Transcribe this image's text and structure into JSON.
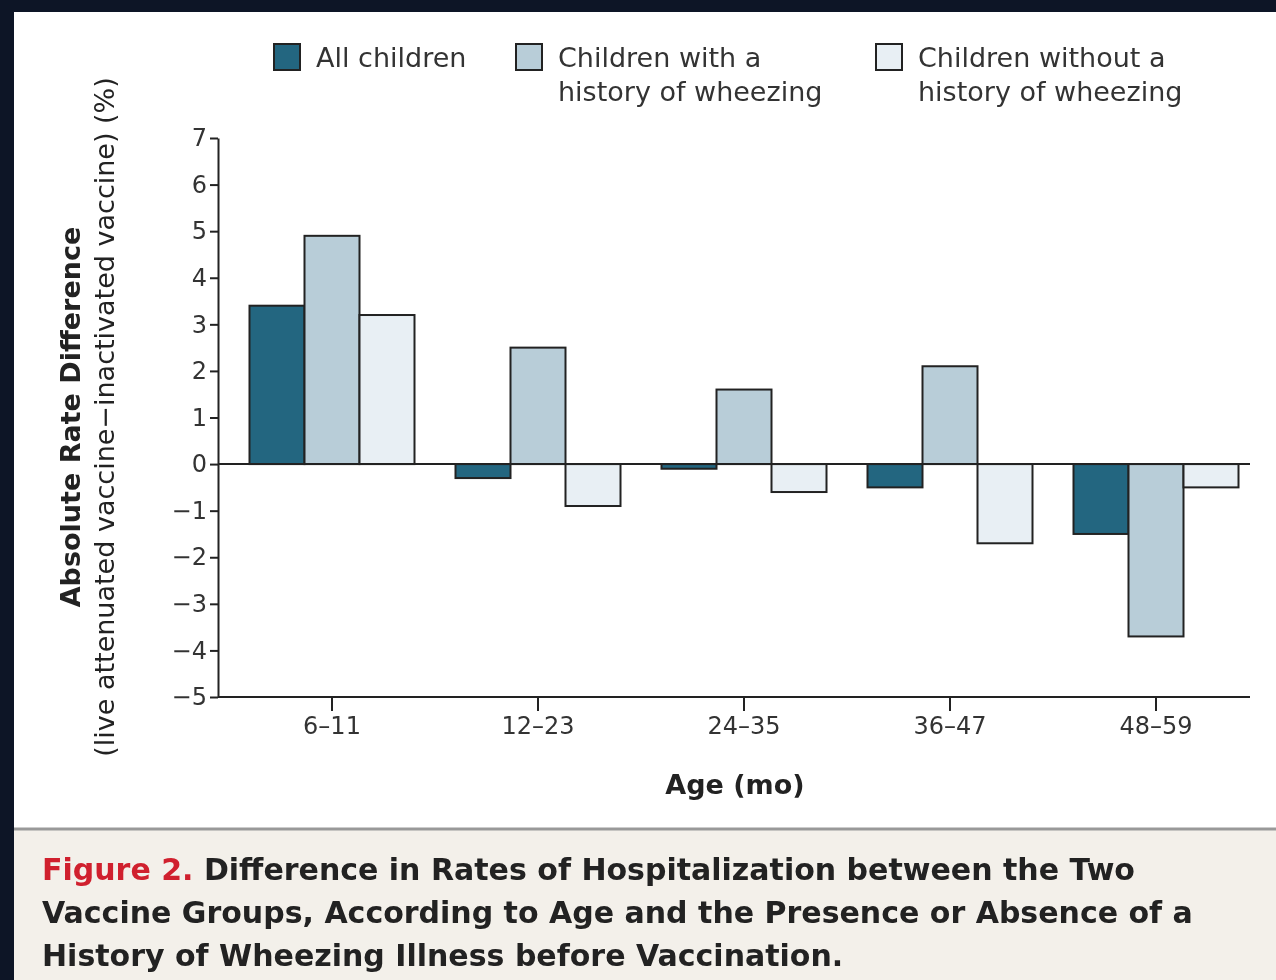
{
  "chart_data": {
    "type": "bar",
    "title": "Figure 2.",
    "subtitle": "Difference in Rates of Hospitalization between the Two Vaccine Groups, According to Age and the Presence or Absence of a History of Wheezing Illness before Vaccination.",
    "xlabel": "Age (mo)",
    "ylabel": "Absolute Rate Difference\n(live attenuated vaccine−inactivated vaccine) (%)",
    "categories": [
      "6–11",
      "12–23",
      "24–35",
      "36–47",
      "48–59"
    ],
    "series": [
      {
        "name": "All children",
        "color": "#236680",
        "values": [
          3.4,
          -0.3,
          -0.1,
          -0.5,
          -1.5
        ]
      },
      {
        "name": "Children with a history of wheezing",
        "color": "#b8cdd8",
        "values": [
          4.9,
          2.5,
          1.6,
          2.1,
          -3.7
        ]
      },
      {
        "name": "Children without a history of wheezing",
        "color": "#e8eff4",
        "values": [
          3.2,
          -0.9,
          -0.6,
          -1.7,
          -0.5
        ]
      }
    ],
    "ylim": [
      -5,
      7
    ],
    "yticks": [
      {
        "value": -5,
        "label": "−5"
      },
      {
        "value": -4,
        "label": "−4"
      },
      {
        "value": -3,
        "label": "−3"
      },
      {
        "value": -2,
        "label": "−2"
      },
      {
        "value": -1,
        "label": "−1"
      },
      0,
      1,
      2,
      3,
      4,
      5,
      6,
      7
    ],
    "ref_lines": [
      {
        "axis": "y",
        "value": 0
      }
    ],
    "legend": "top"
  }
}
